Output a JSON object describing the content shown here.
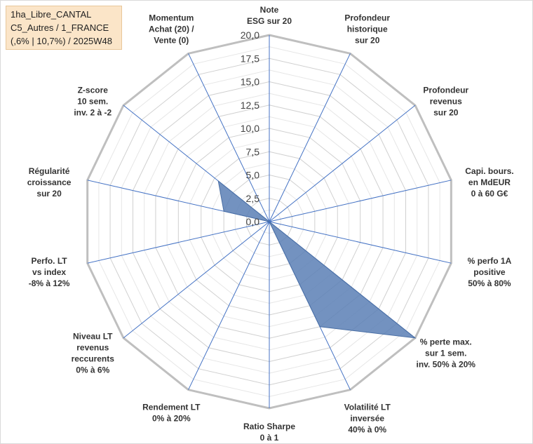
{
  "title_box": {
    "line1": "1ha_Libre_CANTAL",
    "line2": "C5_Autres / 1_FRANCE",
    "line3": "(,6% | 10,7%) / 2025W48"
  },
  "chart_data": {
    "type": "radar",
    "ylim": [
      0,
      20
    ],
    "tick_step": 2.5,
    "tick_labels": [
      "0,0",
      "2,5",
      "5,0",
      "7,5",
      "10,0",
      "12,5",
      "15,0",
      "17,5",
      "20,0"
    ],
    "grid": true,
    "fill_color": "#5b7fb5",
    "axis_color": "#4472c4",
    "grid_color": "#d0d0d0",
    "outer_ring_color": "#bfbfbf",
    "axes": [
      {
        "label": [
          "Note",
          "ESG sur 20"
        ],
        "value": 0
      },
      {
        "label": [
          "Profondeur",
          "historique",
          "sur 20"
        ],
        "value": 0
      },
      {
        "label": [
          "Profondeur",
          "revenus",
          "sur 20"
        ],
        "value": 0
      },
      {
        "label": [
          "Capi. bours.",
          "en MdEUR",
          "0 à 60 G€"
        ],
        "value": 0
      },
      {
        "label": [
          "% perfo 1A",
          "positive",
          "50% à 80%"
        ],
        "value": 0
      },
      {
        "label": [
          "% perte max.",
          "sur 1 sem.",
          "inv. 50% à 20%"
        ],
        "value": 20
      },
      {
        "label": [
          "Volatilité LT",
          "inversée",
          "40% à 0%"
        ],
        "value": 12.5
      },
      {
        "label": [
          "Ratio Sharpe",
          "0 à 1"
        ],
        "value": 0
      },
      {
        "label": [
          "Rendement LT",
          "0% à 20%"
        ],
        "value": 0
      },
      {
        "label": [
          "Niveau LT",
          "revenus",
          "reccurents",
          "0% à 6%"
        ],
        "value": 0
      },
      {
        "label": [
          "Perfo. LT",
          "vs index",
          "-8% à 12%"
        ],
        "value": 0
      },
      {
        "label": [
          "Régularité",
          "croissance",
          "sur 20"
        ],
        "value": 5
      },
      {
        "label": [
          "Z-score",
          "10 sem.",
          "inv. 2 à -2"
        ],
        "value": 7
      },
      {
        "label": [
          "Momentum",
          "Achat (20) /",
          "Vente (0)"
        ],
        "value": 0
      }
    ]
  }
}
